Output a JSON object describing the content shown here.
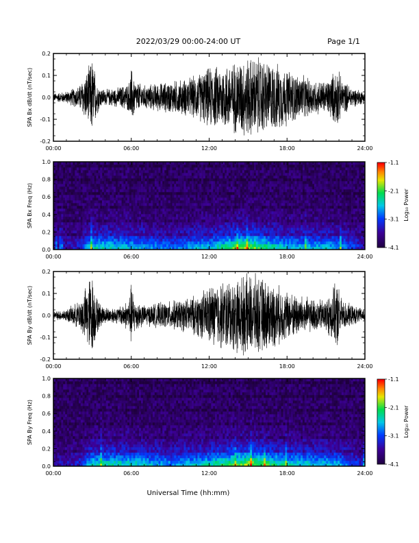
{
  "header": {
    "title": "2022/03/29  00:00-24:00 UT",
    "page": "Page 1/1"
  },
  "x_axis_label": "Universal Time (hh:mm)",
  "x_tick_labels": [
    "00:00",
    "06:00",
    "12:00",
    "18:00",
    "24:00"
  ],
  "colorbar": {
    "label": "Log₁₀ Power",
    "tick_labels": [
      "-1.1",
      "-2.1",
      "-3.1",
      "-4.1"
    ]
  },
  "chart_data": [
    {
      "type": "line",
      "ylabel": "SPA Bx dB/dt (nT/sec)",
      "xlim_hours": [
        0,
        24
      ],
      "ylim": [
        -0.2,
        0.2
      ],
      "y_tick_labels": [
        "0.2",
        "0.1",
        "0.0",
        "-0.1",
        "-0.2"
      ],
      "series": [
        {
          "envelope_hours": [
            0,
            1,
            2,
            2.5,
            2.8,
            3.0,
            3.3,
            3.6,
            4,
            5,
            5.8,
            6.0,
            6.3,
            7,
            8,
            9,
            10,
            11,
            11.5,
            12,
            13,
            14,
            14.5,
            15,
            15.5,
            16,
            16.5,
            17,
            17.5,
            18,
            19,
            20,
            21,
            21.9,
            22.2,
            23,
            24
          ],
          "envelope_amplitude": [
            0.02,
            0.03,
            0.06,
            0.12,
            0.16,
            0.2,
            0.1,
            0.05,
            0.04,
            0.05,
            0.07,
            0.15,
            0.08,
            0.06,
            0.07,
            0.08,
            0.09,
            0.11,
            0.13,
            0.15,
            0.16,
            0.18,
            0.2,
            0.2,
            0.2,
            0.2,
            0.18,
            0.17,
            0.16,
            0.14,
            0.11,
            0.09,
            0.08,
            0.15,
            0.09,
            0.05,
            0.03
          ]
        }
      ]
    },
    {
      "type": "heatmap",
      "ylabel": "SPA Bx Freq (Hz)",
      "xlim_hours": [
        0,
        24
      ],
      "ylim": [
        0,
        1.0
      ],
      "y_tick_labels": [
        "1.0",
        "0.8",
        "0.6",
        "0.4",
        "0.2",
        "0.0"
      ],
      "color_range_log10_power": [
        -4.1,
        -1.1
      ],
      "activity_hours": [
        0,
        2,
        3,
        6,
        9,
        12,
        15,
        16,
        18,
        22,
        24
      ],
      "activity_level": [
        0.15,
        0.25,
        0.6,
        0.55,
        0.4,
        0.55,
        0.85,
        0.7,
        0.55,
        0.5,
        0.2
      ]
    },
    {
      "type": "line",
      "ylabel": "SPA By dB/dt (nT/sec)",
      "xlim_hours": [
        0,
        24
      ],
      "ylim": [
        -0.2,
        0.2
      ],
      "y_tick_labels": [
        "0.2",
        "0.1",
        "0.0",
        "-0.1",
        "-0.2"
      ],
      "series": [
        {
          "envelope_hours": [
            0,
            1,
            2,
            2.5,
            2.8,
            3.0,
            3.3,
            3.6,
            4,
            5,
            5.8,
            6.0,
            6.3,
            7,
            8,
            9,
            10,
            11,
            11.5,
            12,
            13,
            14,
            14.5,
            15,
            15.5,
            16,
            16.5,
            17,
            17.5,
            18,
            19,
            20,
            21,
            21.9,
            22.2,
            23,
            24
          ],
          "envelope_amplitude": [
            0.02,
            0.03,
            0.07,
            0.14,
            0.2,
            0.2,
            0.1,
            0.06,
            0.04,
            0.04,
            0.08,
            0.16,
            0.08,
            0.05,
            0.06,
            0.07,
            0.08,
            0.1,
            0.12,
            0.15,
            0.17,
            0.18,
            0.19,
            0.2,
            0.2,
            0.19,
            0.17,
            0.16,
            0.14,
            0.12,
            0.1,
            0.08,
            0.08,
            0.17,
            0.08,
            0.05,
            0.03
          ]
        }
      ]
    },
    {
      "type": "heatmap",
      "ylabel": "SPA By Freq (Hz)",
      "xlim_hours": [
        0,
        24
      ],
      "ylim": [
        0,
        1.0
      ],
      "y_tick_labels": [
        "1.0",
        "0.8",
        "0.6",
        "0.4",
        "0.2",
        "0.0"
      ],
      "color_range_log10_power": [
        -4.1,
        -1.1
      ],
      "activity_hours": [
        0,
        2,
        3,
        6,
        9,
        12,
        15,
        16,
        18,
        22,
        24
      ],
      "activity_level": [
        0.15,
        0.25,
        0.6,
        0.6,
        0.45,
        0.6,
        0.85,
        0.75,
        0.6,
        0.5,
        0.2
      ]
    }
  ]
}
